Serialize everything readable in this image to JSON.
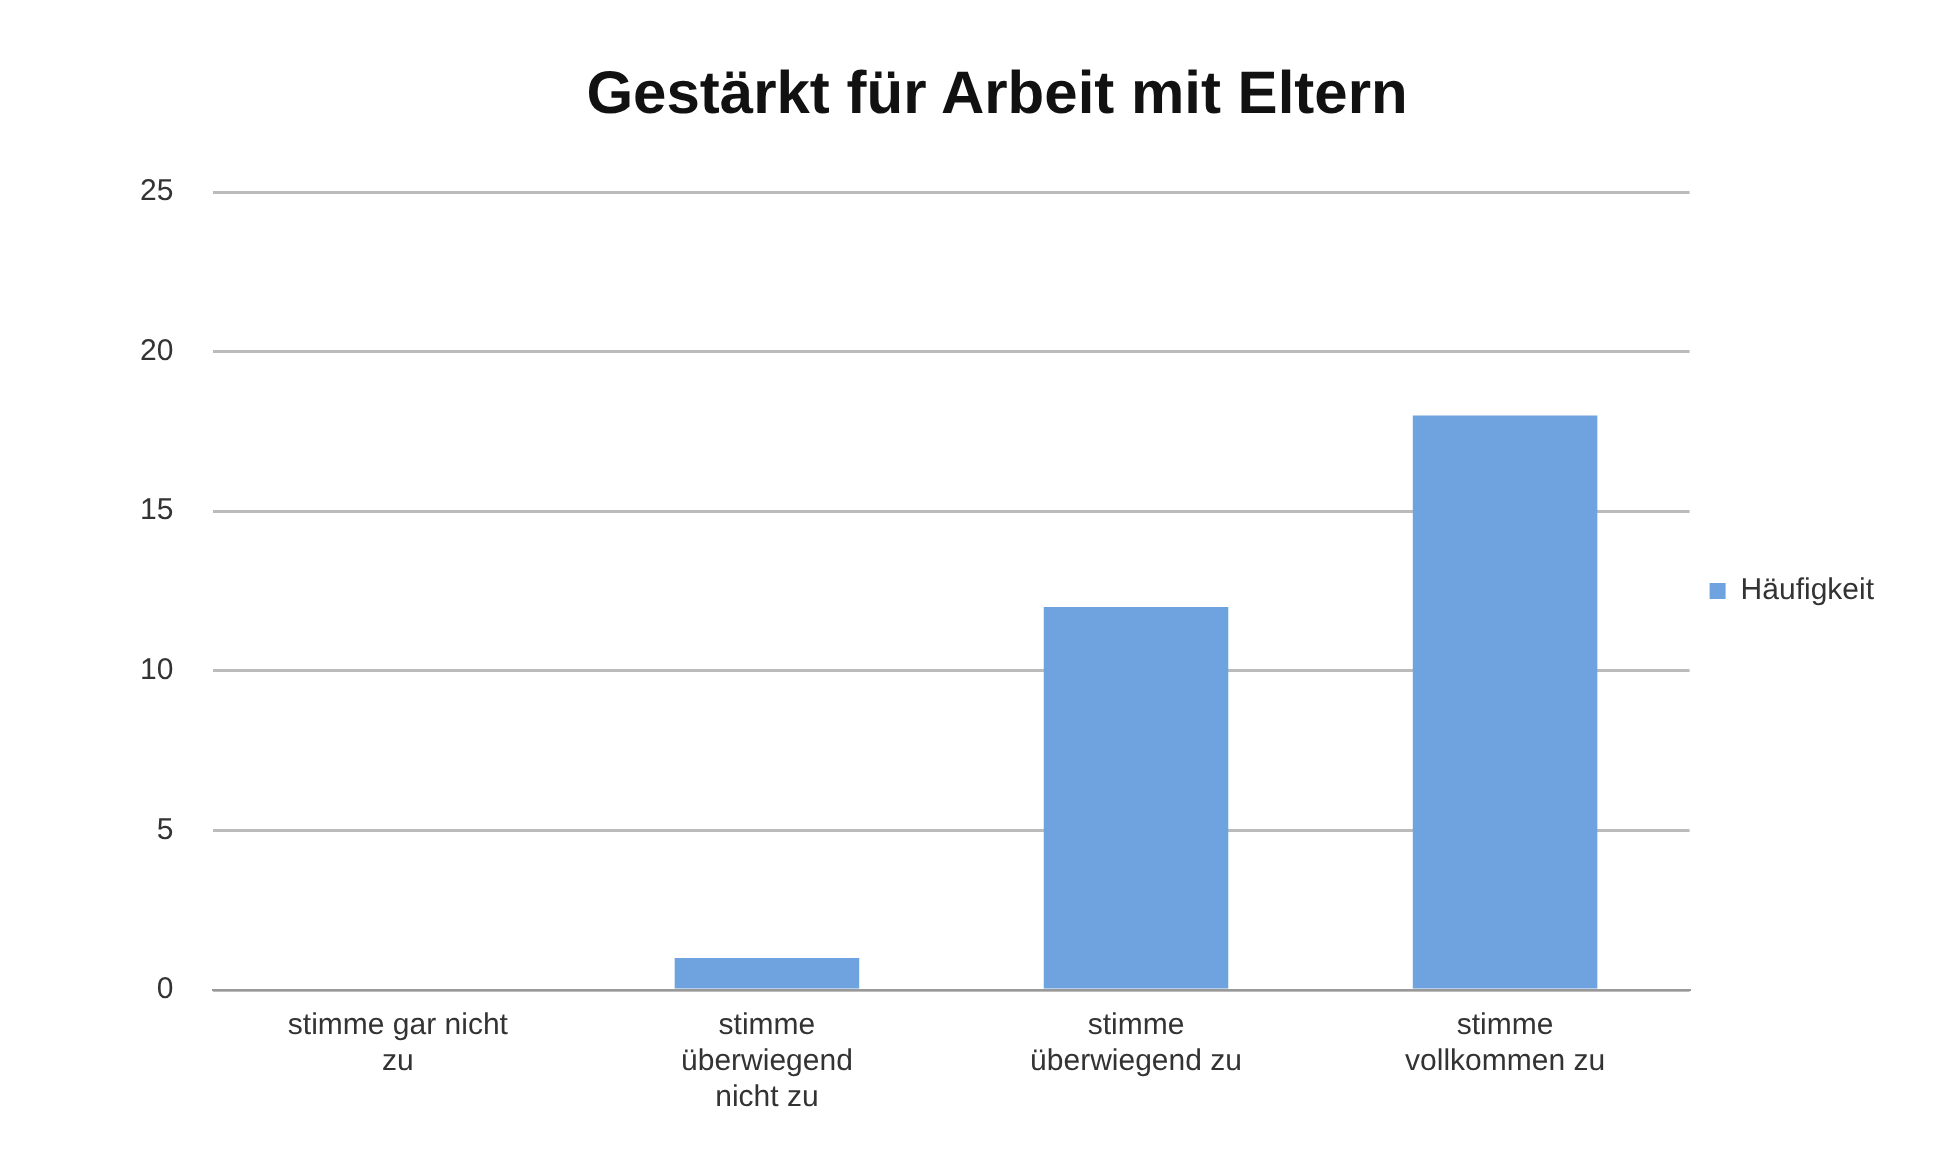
{
  "chart_data": {
    "type": "bar",
    "title": "Gestärkt für Arbeit mit Eltern",
    "categories": [
      "stimme gar nicht zu",
      "stimme überwiegend nicht zu",
      "stimme überwiegend zu",
      "stimme vollkommen zu"
    ],
    "series": [
      {
        "name": "Häufigkeit",
        "color": "#6fa3e0",
        "values": [
          0,
          1,
          12,
          18
        ]
      }
    ],
    "ylim": [
      0,
      25
    ],
    "yticks": [
      0,
      5,
      10,
      15,
      20,
      25
    ],
    "grid": "y",
    "legend": "right"
  }
}
